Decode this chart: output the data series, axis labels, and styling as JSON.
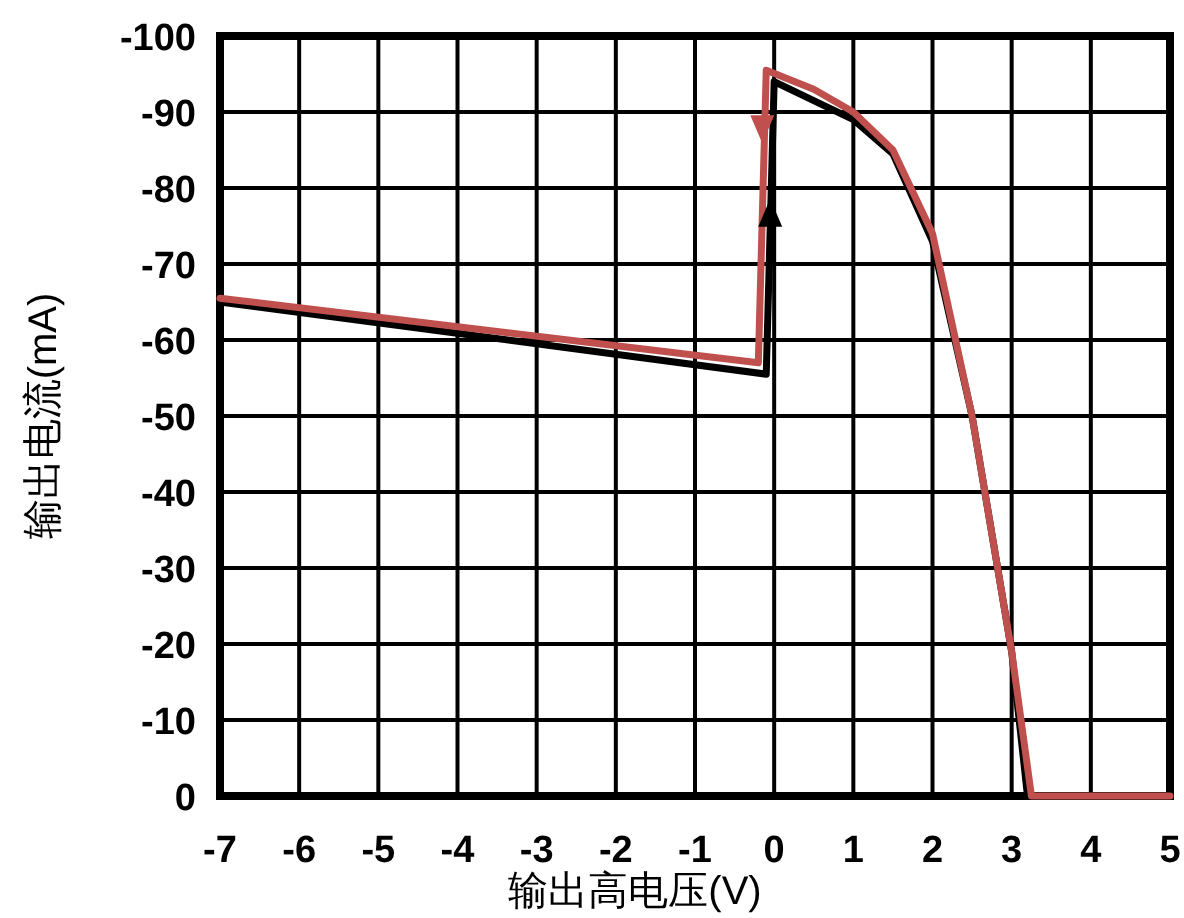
{
  "chart_data": {
    "type": "line",
    "xlabel": "输出高电压(V)",
    "ylabel": "输出电流(mA)",
    "xlim": [
      -7,
      5
    ],
    "ylim": [
      0,
      -100
    ],
    "xticks": [
      -7,
      -6,
      -5,
      -4,
      -3,
      -2,
      -1,
      0,
      1,
      2,
      3,
      4,
      5
    ],
    "yticks": [
      0,
      -10,
      -20,
      -30,
      -40,
      -50,
      -60,
      -70,
      -80,
      -90,
      -100
    ],
    "grid": true,
    "series": [
      {
        "color": "#000000",
        "x": [
          -7,
          -0.1,
          0,
          0.5,
          1,
          1.5,
          2,
          2.5,
          3,
          3.2,
          5
        ],
        "values": [
          -65,
          -55.5,
          -94,
          -91.5,
          -89,
          -84.5,
          -73,
          -50,
          -19,
          0,
          0
        ]
      },
      {
        "color": "#c0504d",
        "x": [
          -7,
          -0.2,
          -0.1,
          0.5,
          1,
          1.5,
          2,
          2.5,
          3,
          3.25,
          5
        ],
        "values": [
          -65.5,
          -57,
          -95.5,
          -93,
          -90,
          -85,
          -74,
          -50,
          -19,
          0,
          0
        ]
      }
    ]
  }
}
